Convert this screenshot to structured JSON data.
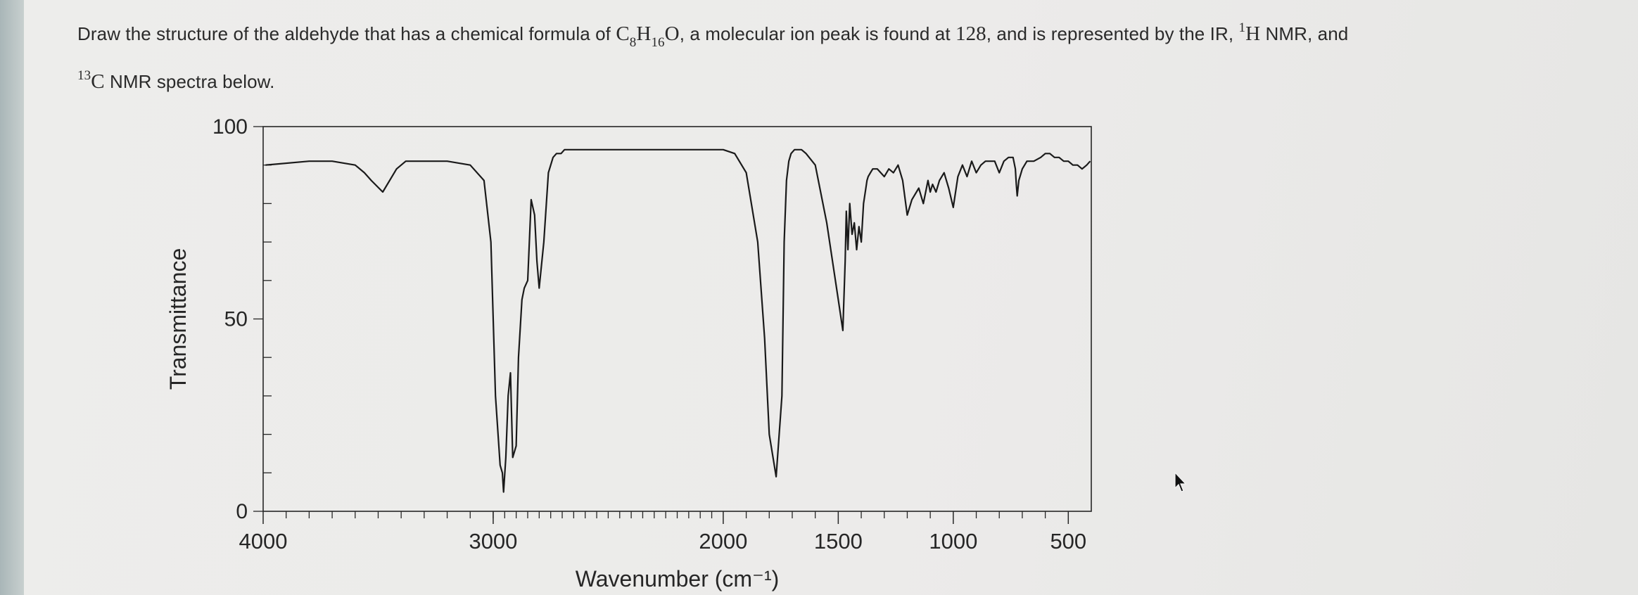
{
  "question": {
    "part1": "Draw the structure of the aldehyde that has a chemical formula of ",
    "c": "C",
    "c_count": "8",
    "h": "H",
    "h_count": "16",
    "o": "O",
    "part2": ", a molecular ion peak is found at ",
    "mass": "128",
    "part3": ", and is represented by the IR, ",
    "h_mass_number": "1",
    "h_symbol": "H",
    "part4": " NMR, and ",
    "c_mass_number": "13",
    "c_symbol": "C",
    "part5": " NMR spectra below."
  },
  "chart_data": {
    "type": "line",
    "title": "",
    "xlabel": "Wavenumber (cm⁻¹)",
    "ylabel": "Transmittance",
    "xlim": [
      4000,
      400
    ],
    "ylim": [
      0,
      100
    ],
    "x_reversed": true,
    "x_ticks": [
      4000,
      3000,
      2000,
      1500,
      1000,
      500
    ],
    "x_tick_labels": [
      "4000",
      "3000",
      "2000",
      "1500",
      "1000",
      "500"
    ],
    "y_ticks": [
      0,
      50,
      100
    ],
    "y_tick_labels": [
      "0",
      "50",
      "100"
    ],
    "grid": false,
    "series": [
      {
        "color": "#1a1a1a",
        "x": [
          3990,
          3800,
          3700,
          3600,
          3560,
          3530,
          3480,
          3420,
          3380,
          3300,
          3200,
          3100,
          3040,
          3010,
          2990,
          2970,
          2960,
          2955,
          2945,
          2935,
          2925,
          2915,
          2900,
          2890,
          2875,
          2865,
          2850,
          2835,
          2820,
          2810,
          2800,
          2780,
          2760,
          2740,
          2725,
          2715,
          2705,
          2690,
          2650,
          2600,
          2500,
          2300,
          2200,
          2000,
          1950,
          1900,
          1850,
          1820,
          1800,
          1770,
          1745,
          1735,
          1725,
          1715,
          1705,
          1690,
          1660,
          1640,
          1600,
          1550,
          1500,
          1480,
          1470,
          1465,
          1458,
          1450,
          1440,
          1430,
          1420,
          1410,
          1400,
          1390,
          1380,
          1375,
          1370,
          1360,
          1350,
          1330,
          1300,
          1280,
          1260,
          1240,
          1220,
          1200,
          1180,
          1150,
          1130,
          1110,
          1100,
          1090,
          1075,
          1060,
          1040,
          1020,
          1000,
          980,
          960,
          940,
          920,
          900,
          880,
          860,
          840,
          820,
          800,
          780,
          760,
          740,
          730,
          726,
          722,
          715,
          700,
          680,
          650,
          620,
          600,
          580,
          560,
          540,
          520,
          500,
          480,
          460,
          440,
          420,
          405
        ],
        "y": [
          90,
          91,
          91,
          90,
          88,
          86,
          83,
          89,
          91,
          91,
          91,
          90,
          86,
          70,
          30,
          12,
          10,
          5,
          14,
          30,
          36,
          14,
          17,
          40,
          55,
          58,
          60,
          81,
          77,
          65,
          58,
          70,
          88,
          92,
          93,
          93,
          93,
          94,
          94,
          94,
          94,
          94,
          94,
          94,
          93,
          88,
          70,
          45,
          20,
          9,
          30,
          70,
          86,
          91,
          93,
          94,
          94,
          93,
          90,
          75,
          55,
          47,
          65,
          78,
          68,
          80,
          72,
          75,
          68,
          74,
          70,
          80,
          84,
          86,
          87,
          88,
          89,
          89,
          87,
          89,
          88,
          90,
          86,
          77,
          81,
          84,
          80,
          86,
          83,
          85,
          83,
          86,
          88,
          84,
          79,
          87,
          90,
          87,
          91,
          88,
          90,
          91,
          91,
          91,
          88,
          91,
          92,
          92,
          89,
          85,
          82,
          86,
          89,
          91,
          91,
          92,
          93,
          93,
          92,
          92,
          91,
          91,
          90,
          90,
          89,
          90,
          91
        ]
      }
    ]
  }
}
